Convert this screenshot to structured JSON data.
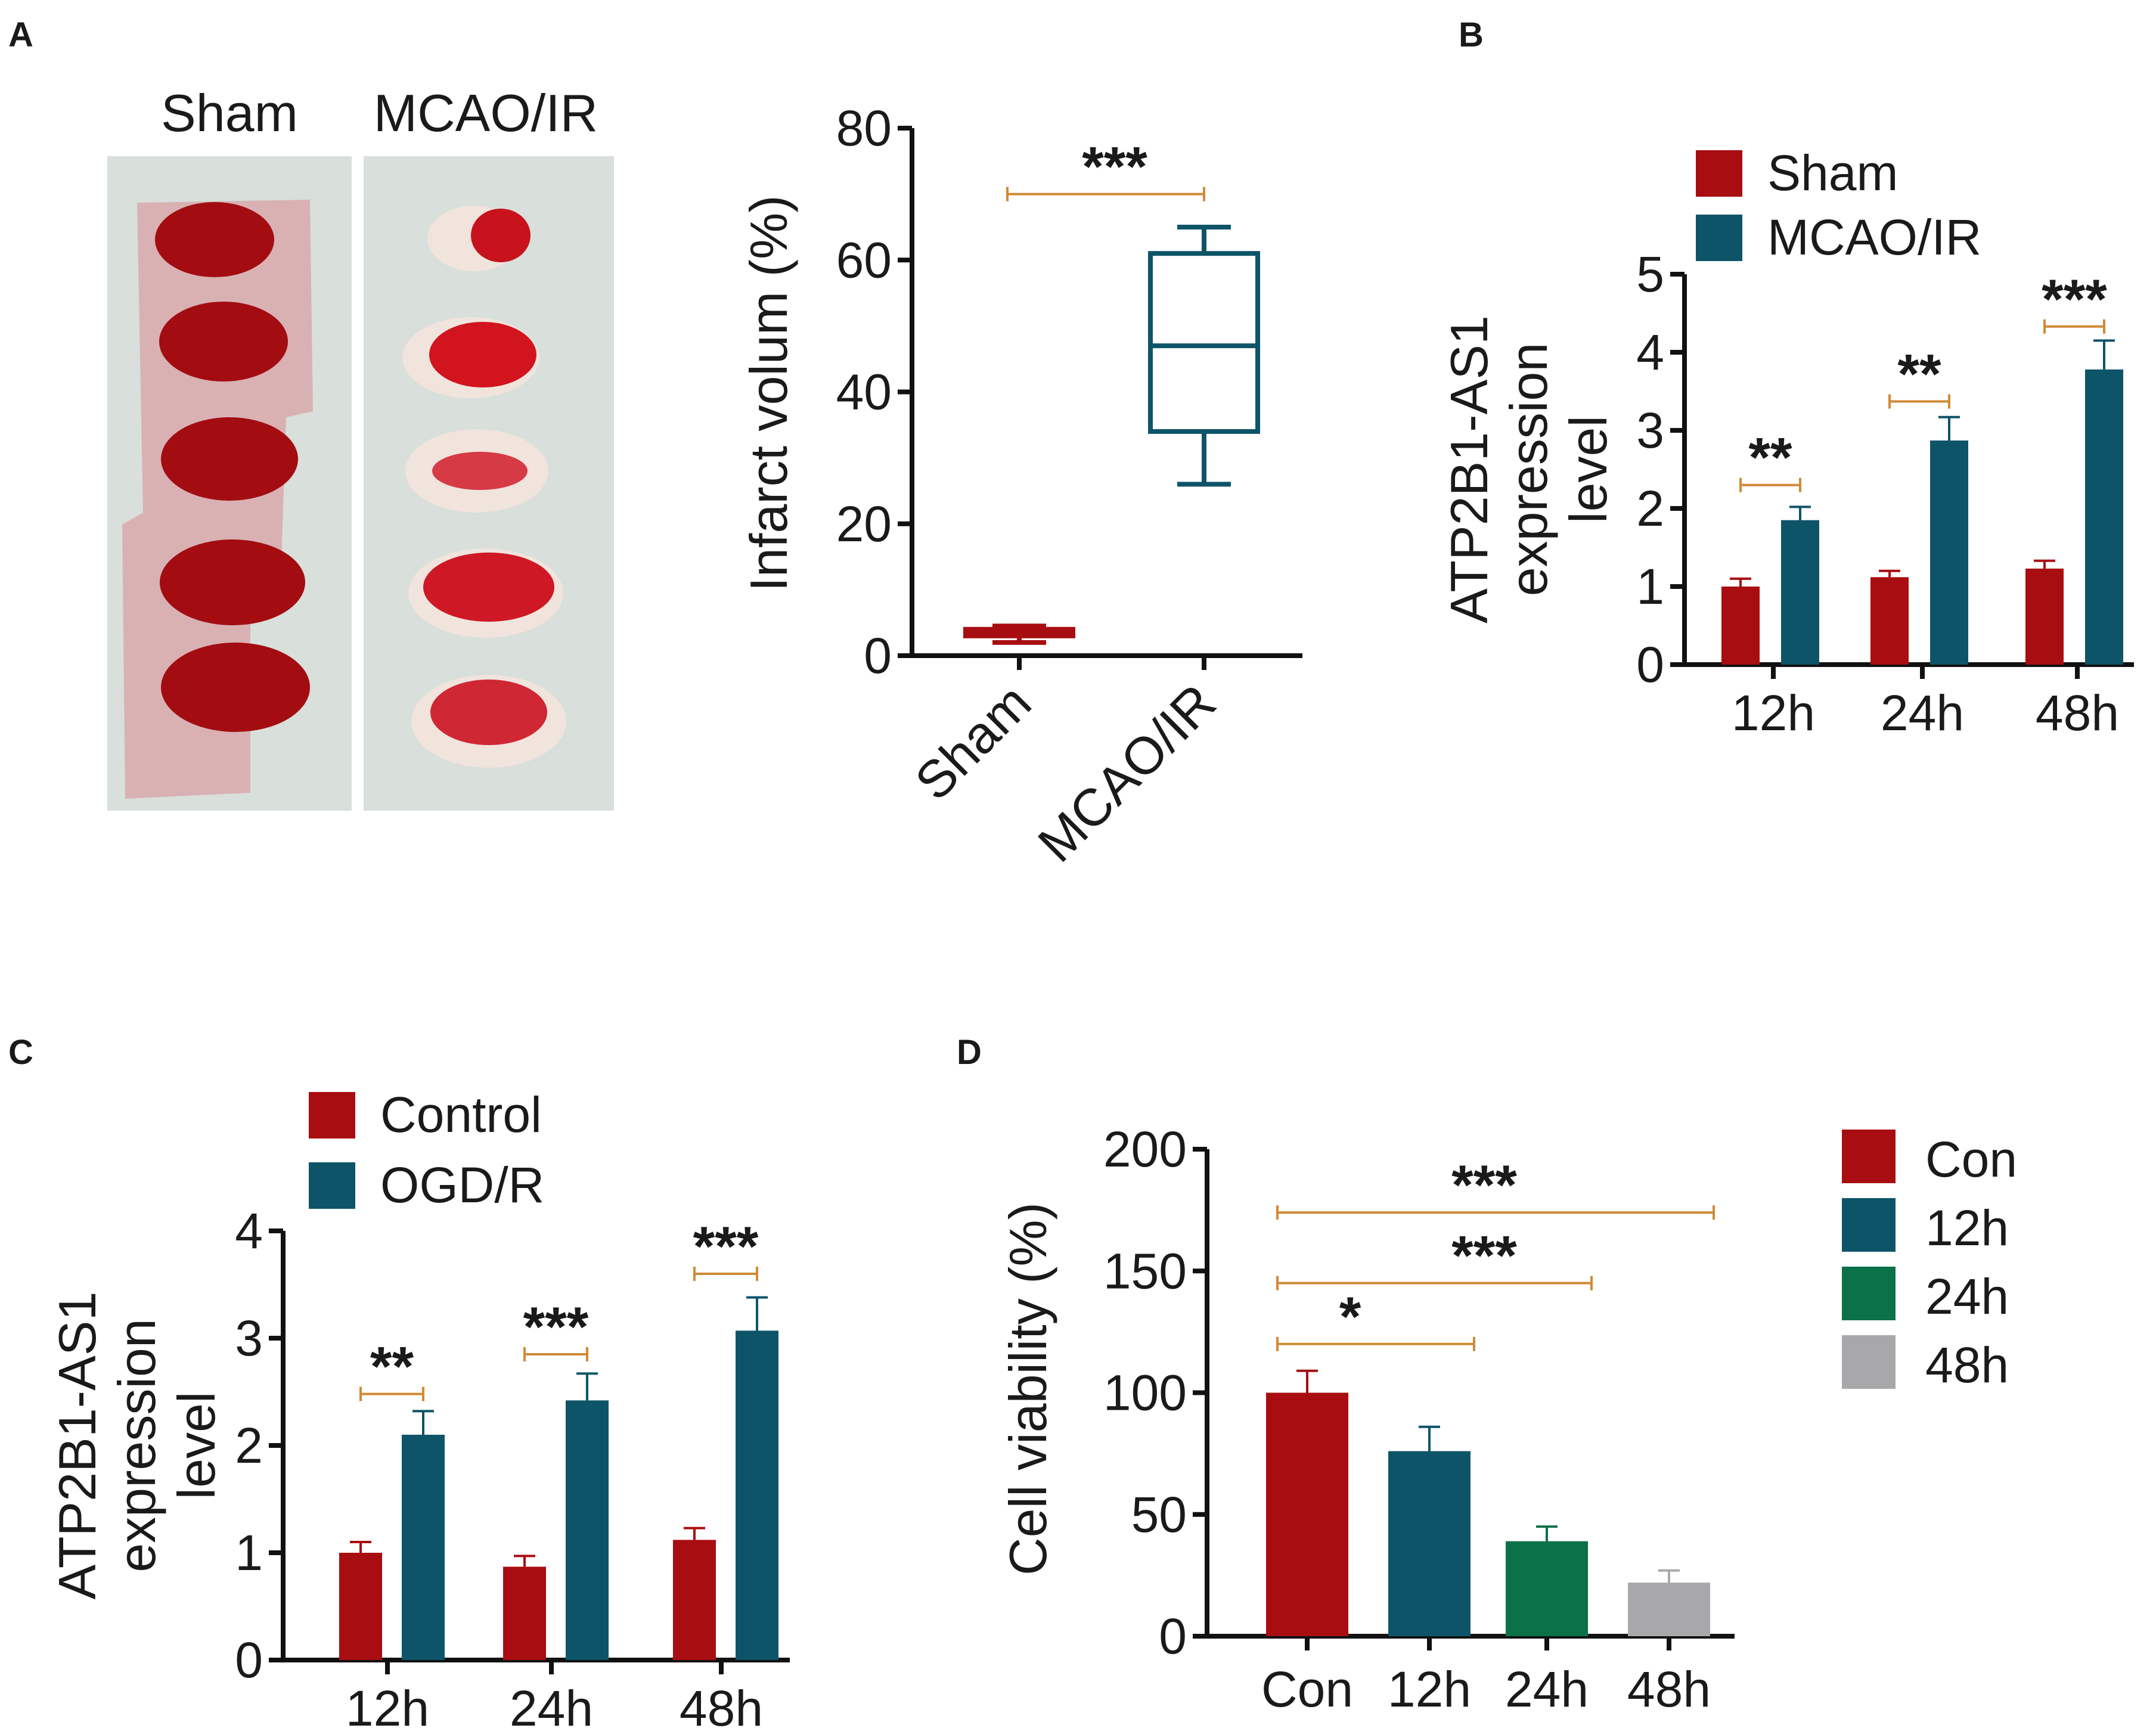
{
  "colors": {
    "red": "#a80d12",
    "teal": "#0e5468",
    "green": "#0b7148",
    "gray": "#a8a8ab",
    "bracket": "#d08a35",
    "tissue": "#d9dfdb"
  },
  "panels": {
    "A": {
      "label": "A",
      "photo": {
        "left_title": "Sham",
        "right_title": "MCAO/IR"
      }
    },
    "B": {
      "label": "B"
    },
    "C": {
      "label": "C"
    },
    "D": {
      "label": "D"
    }
  },
  "chart_data": [
    {
      "panel": "A",
      "type": "box",
      "ylabel": "Infarct volum (%)",
      "ylim": [
        0,
        80
      ],
      "yticks": [
        "0",
        "20",
        "40",
        "60",
        "80"
      ],
      "categories": [
        "Sham",
        "MCAO/IR"
      ],
      "boxes": [
        {
          "name": "Sham",
          "min": 2,
          "q1": 3,
          "median": 3.5,
          "q3": 4,
          "max": 4.5,
          "color": "#a80d12"
        },
        {
          "name": "MCAO/IR",
          "min": 26,
          "q1": 34,
          "median": 47,
          "q3": 61,
          "max": 65,
          "color": "#0e5468"
        }
      ],
      "significance": [
        {
          "from": 0,
          "to": 1,
          "y": 70,
          "label": "***"
        }
      ]
    },
    {
      "panel": "B",
      "type": "bar",
      "ylabel": [
        "ATP2B1-AS1",
        "expression",
        "level"
      ],
      "ylim": [
        0,
        5
      ],
      "yticks": [
        "0",
        "1",
        "2",
        "3",
        "4",
        "5"
      ],
      "categories": [
        "12h",
        "24h",
        "48h"
      ],
      "series": [
        {
          "name": "Sham",
          "color": "#a80d12",
          "values": [
            1.0,
            1.12,
            1.23
          ],
          "errors": [
            0.1,
            0.08,
            0.1
          ]
        },
        {
          "name": "MCAO/IR",
          "color": "#0e5468",
          "values": [
            1.85,
            2.87,
            3.78
          ],
          "errors": [
            0.17,
            0.3,
            0.37
          ]
        }
      ],
      "significance": [
        {
          "group": 0,
          "y": 2.3,
          "label": "**"
        },
        {
          "group": 1,
          "y": 3.37,
          "label": "**"
        },
        {
          "group": 2,
          "y": 4.33,
          "label": "***"
        }
      ]
    },
    {
      "panel": "C",
      "type": "bar",
      "ylabel": [
        "ATP2B1-AS1",
        "expression",
        "level"
      ],
      "ylim": [
        0,
        4
      ],
      "yticks": [
        "0",
        "1",
        "2",
        "3",
        "4"
      ],
      "categories": [
        "12h",
        "24h",
        "48h"
      ],
      "series": [
        {
          "name": "Control",
          "color": "#a80d12",
          "values": [
            1.0,
            0.87,
            1.12
          ],
          "errors": [
            0.1,
            0.1,
            0.11
          ]
        },
        {
          "name": "OGD/R",
          "color": "#0e5468",
          "values": [
            2.1,
            2.42,
            3.07
          ],
          "errors": [
            0.22,
            0.25,
            0.31
          ]
        }
      ],
      "significance": [
        {
          "group": 0,
          "y": 2.48,
          "label": "**"
        },
        {
          "group": 1,
          "y": 2.85,
          "label": "***"
        },
        {
          "group": 2,
          "y": 3.6,
          "label": "***"
        }
      ]
    },
    {
      "panel": "D",
      "type": "bar",
      "ylabel": "Cell viability (%)",
      "ylim": [
        0,
        200
      ],
      "yticks": [
        "0",
        "50",
        "100",
        "150",
        "200"
      ],
      "categories": [
        "Con",
        "12h",
        "24h",
        "48h"
      ],
      "series": [
        {
          "name": "Con",
          "color": "#a80d12",
          "value": 100,
          "error": 9
        },
        {
          "name": "12h",
          "color": "#0e5468",
          "value": 76,
          "error": 10
        },
        {
          "name": "24h",
          "color": "#0b7148",
          "value": 39,
          "error": 6
        },
        {
          "name": "48h",
          "color": "#a8a8ab",
          "value": 22,
          "error": 5
        }
      ],
      "significance": [
        {
          "from": 0,
          "to": 1,
          "y": 120,
          "label": "*"
        },
        {
          "from": 0,
          "to": 2,
          "y": 145,
          "label": "***"
        },
        {
          "from": 0,
          "to": 3,
          "y": 174,
          "label": "***"
        }
      ]
    }
  ]
}
